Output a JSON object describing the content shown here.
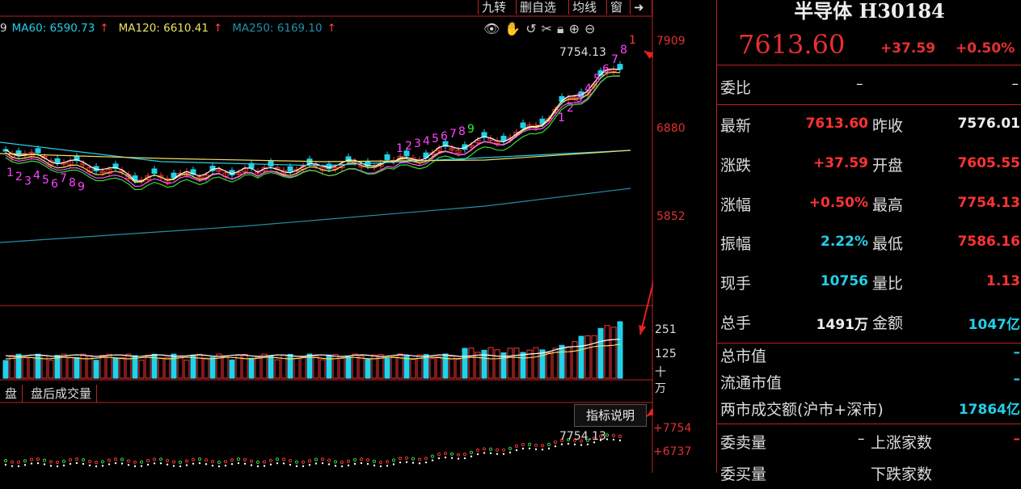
{
  "toolbar": {
    "items": [
      "九转",
      "删自选",
      "均线",
      "窗"
    ]
  },
  "ma_legend": [
    {
      "label": "9",
      "color": "#ffffff"
    },
    {
      "label": "MA60: 6590.73",
      "arrow": "↑",
      "color": "#22d0e8"
    },
    {
      "label": "MA120: 6610.41",
      "arrow": "↑",
      "color": "#f0e060"
    },
    {
      "label": "MA250: 6169.10",
      "arrow": "↑",
      "color": "#22a0b8"
    }
  ],
  "tool_icons": [
    "eye-icon",
    "hand-icon",
    "undo-icon",
    "scissors-icon",
    "lock-icon",
    "zoom-in-icon",
    "zoom-out-icon"
  ],
  "price_axis": [
    "7909",
    "6880",
    "5852"
  ],
  "price_high_label": "7754.13",
  "volume_axis": [
    "251",
    "125",
    "十万"
  ],
  "sub_tabs": [
    "盘",
    "盘后成交量"
  ],
  "indicator_button": "指标说明",
  "indicator_axis": [
    "+7754",
    "+6737"
  ],
  "indicator_high_label": "7754.13",
  "nine_turn_labels": {
    "down_seq": [
      "1",
      "2",
      "3",
      "4",
      "5",
      "6",
      "7",
      "8",
      "9"
    ],
    "up_seq": [
      "1",
      "2",
      "3",
      "4",
      "5",
      "6",
      "7",
      "8",
      "9"
    ],
    "recent_seq": [
      "1",
      "2",
      "3",
      "4",
      "5",
      "6",
      "7",
      "8",
      "1"
    ]
  },
  "panel": {
    "title": "半导体 H30184",
    "price": "7613.60",
    "change": "+37.59",
    "change_pct": "+0.50%",
    "weibi_label": "委比",
    "weibi_value": "–",
    "weibi_value2": "–",
    "rows": [
      {
        "l1": "最新",
        "v1": "7613.60",
        "c1": "red",
        "l2": "昨收",
        "v2": "7576.01",
        "c2": "white"
      },
      {
        "l1": "涨跌",
        "v1": "+37.59",
        "c1": "red",
        "l2": "开盘",
        "v2": "7605.55",
        "c2": "red"
      },
      {
        "l1": "涨幅",
        "v1": "+0.50%",
        "c1": "red",
        "l2": "最高",
        "v2": "7754.13",
        "c2": "red"
      },
      {
        "l1": "振幅",
        "v1": "2.22%",
        "c1": "cyan",
        "l2": "最低",
        "v2": "7586.16",
        "c2": "red"
      },
      {
        "l1": "现手",
        "v1": "10756",
        "c1": "cyan",
        "l2": "量比",
        "v2": "1.13",
        "c2": "red"
      },
      {
        "l1": "总手",
        "v1": "1491万",
        "c1": "white",
        "l2": "金额",
        "v2": "1047亿",
        "c2": "cyan"
      }
    ],
    "stats": [
      {
        "label": "总市值",
        "value": "–"
      },
      {
        "label": "流通市值",
        "value": "–"
      },
      {
        "label": "两市成交额(沪市+深市)",
        "value": "17864亿"
      }
    ],
    "bottom": {
      "l1": "委卖量",
      "v1": "–",
      "l2": "上涨家数",
      "v2": "–"
    },
    "cut_off": {
      "l1": "委买量",
      "l2": "下跌家数"
    }
  }
}
